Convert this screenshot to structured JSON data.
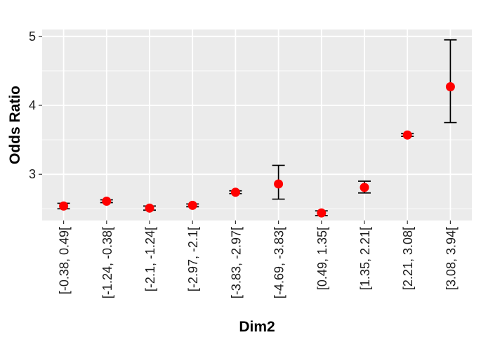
{
  "chart_data": {
    "type": "scatter",
    "title": "",
    "xlabel": "Dim2",
    "ylabel": "Odds Ratio",
    "ylim": [
      2.33,
      5.1
    ],
    "yticks": [
      3,
      4,
      5
    ],
    "grid": true,
    "categories": [
      "[-0.38, 0.49[",
      "[-1.24, -0.38[",
      "[-2.1, -1.24[",
      "[-2.97, -2.1[",
      "[-3.83, -2.97[",
      "[-4.69, -3.83[",
      "[0.49, 1.35[",
      "[1.35, 2.21[",
      "[2.21, 3.08[",
      "[3.08, 3.94["
    ],
    "values": [
      2.54,
      2.61,
      2.51,
      2.55,
      2.74,
      2.86,
      2.44,
      2.81,
      3.57,
      4.27
    ],
    "ci_lower": [
      2.5,
      2.59,
      2.48,
      2.53,
      2.72,
      2.64,
      2.4,
      2.73,
      3.55,
      3.75
    ],
    "ci_upper": [
      2.58,
      2.63,
      2.54,
      2.57,
      2.76,
      3.13,
      2.47,
      2.9,
      3.59,
      4.95
    ],
    "point_color": "#ff0000",
    "errorbar_color": "#000000"
  },
  "style": {
    "panel_bg": "#ebebeb",
    "grid_color": "#ffffff"
  }
}
